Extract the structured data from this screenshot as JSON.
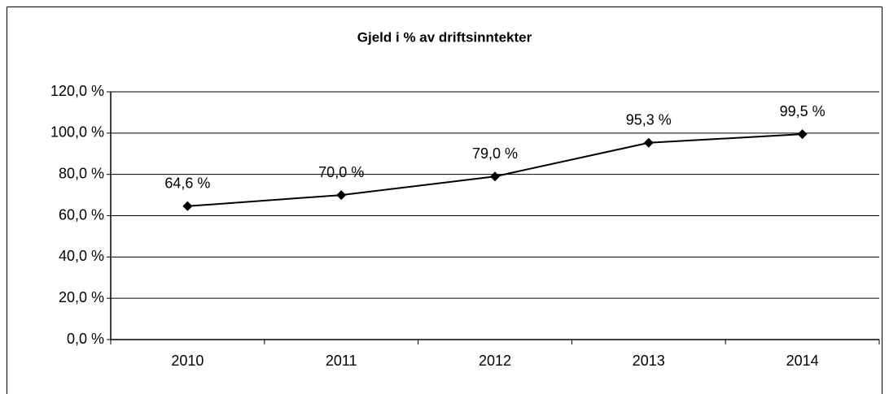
{
  "chart_data": {
    "type": "line",
    "title": "Gjeld i % av driftsinntekter",
    "categories": [
      "2010",
      "2011",
      "2012",
      "2013",
      "2014"
    ],
    "series": [
      {
        "name": "Gjeld i % av driftsinntekter",
        "color": "#000000",
        "values": [
          64.6,
          70.0,
          79.0,
          95.3,
          99.5
        ],
        "value_labels": [
          "64,6 %",
          "70,0 %",
          "79,0 %",
          "95,3 %",
          "99,5 %"
        ]
      }
    ],
    "ylim": [
      0,
      120
    ],
    "yticks": [
      {
        "value": 0,
        "label": "0,0 %"
      },
      {
        "value": 20,
        "label": "20,0 %"
      },
      {
        "value": 40,
        "label": "40,0 %"
      },
      {
        "value": 60,
        "label": "60,0 %"
      },
      {
        "value": 80,
        "label": "80,0 %"
      },
      {
        "value": 100,
        "label": "100,0 %"
      },
      {
        "value": 120,
        "label": "120,0 %"
      }
    ],
    "grid": true
  }
}
